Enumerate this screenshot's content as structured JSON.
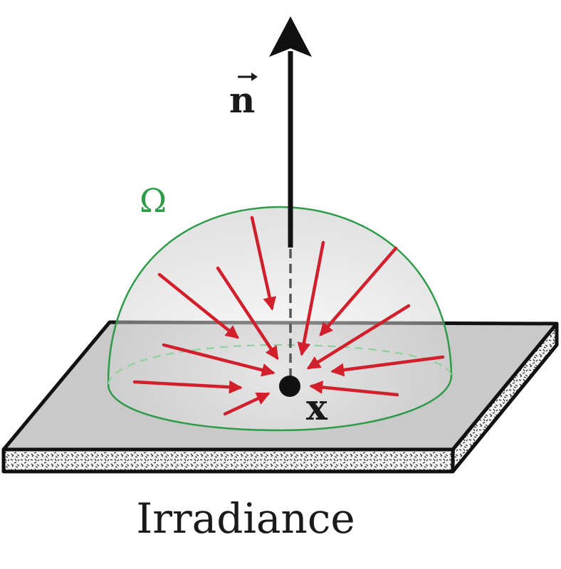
{
  "diagram": {
    "normal_label": "n",
    "point_label": "x",
    "hemisphere_label": "Ω",
    "caption": "Irradiance"
  },
  "colors": {
    "ray": "#d11f2b",
    "hemisphere": "#2f9a4a",
    "normal": "#111111",
    "plate_top": "#c9c9c9",
    "plate_side": "#e6e6e6"
  }
}
